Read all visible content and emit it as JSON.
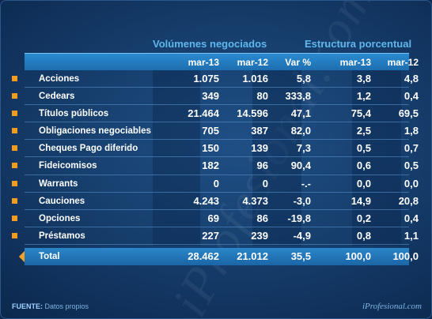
{
  "group_titles": {
    "volumes": "Volúmenes negociados",
    "structure": "Estructura porcentual"
  },
  "headers": [
    "mar-13",
    "mar-12",
    "Var %",
    "mar-13",
    "mar-12"
  ],
  "rows": [
    {
      "label": "Acciones",
      "values": [
        "1.075",
        "1.016",
        "5,8",
        "3,8",
        "4,8"
      ]
    },
    {
      "label": "Cedears",
      "values": [
        "349",
        "80",
        "333,8",
        "1,2",
        "0,4"
      ]
    },
    {
      "label": "Títulos públicos",
      "values": [
        "21.464",
        "14.596",
        "47,1",
        "75,4",
        "69,5"
      ]
    },
    {
      "label": "Obligaciones negociables",
      "values": [
        "705",
        "387",
        "82,0",
        "2,5",
        "1,8"
      ]
    },
    {
      "label": "Cheques Pago diferido",
      "values": [
        "150",
        "139",
        "7,3",
        "0,5",
        "0,7"
      ]
    },
    {
      "label": "Fideicomisos",
      "values": [
        "182",
        "96",
        "90,4",
        "0,6",
        "0,5"
      ]
    },
    {
      "label": "Warrants",
      "values": [
        "0",
        "0",
        "-.-",
        "0,0",
        "0,0"
      ]
    },
    {
      "label": "Cauciones",
      "values": [
        "4.243",
        "4.373",
        "-3,0",
        "14,9",
        "20,8"
      ]
    },
    {
      "label": "Opciones",
      "values": [
        "69",
        "86",
        "-19,8",
        "0,2",
        "0,4"
      ]
    },
    {
      "label": "Préstamos",
      "values": [
        "227",
        "239",
        "-4,9",
        "0,8",
        "1,1"
      ]
    }
  ],
  "total": {
    "label": "Total",
    "values": [
      "28.462",
      "21.012",
      "35,5",
      "100,0",
      "100,0"
    ]
  },
  "footer": {
    "source_label": "FUENTE:",
    "source_text": "Datos propios",
    "brand": "iProfesional.com"
  },
  "watermark": "iProfesional.com",
  "colors": {
    "accent_blue": "#5fb7ee",
    "header_bar": "#2b8bd0",
    "bullet_orange": "#f29b1d"
  }
}
